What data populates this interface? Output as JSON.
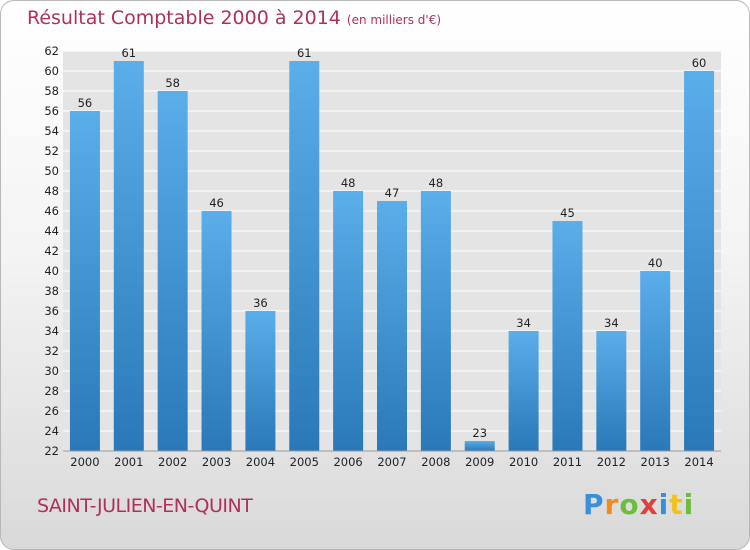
{
  "header": {
    "title": "Résultat Comptable 2000 à 2014",
    "unit": "(en milliers d'€)"
  },
  "footer": {
    "city": "SAINT-JULIEN-EN-QUINT",
    "logo": "Proxiti"
  },
  "colors": {
    "title": "#b0305a",
    "bar_top": "#5aaeea",
    "bar_bottom": "#2a78b8",
    "grid": "#ffffff",
    "plot_bg": "#e4e4e4",
    "axis_text": "#222222"
  },
  "chart_data": {
    "type": "bar",
    "title": "Résultat Comptable 2000 à 2014",
    "xlabel": "",
    "ylabel": "",
    "ylim": [
      22,
      62
    ],
    "ytick_step": 2,
    "grid": true,
    "categories": [
      "2000",
      "2001",
      "2002",
      "2003",
      "2004",
      "2005",
      "2006",
      "2007",
      "2008",
      "2009",
      "2010",
      "2011",
      "2012",
      "2013",
      "2014"
    ],
    "values": [
      56,
      61,
      58,
      46,
      36,
      61,
      48,
      47,
      48,
      23,
      34,
      45,
      34,
      40,
      60
    ],
    "data_labels": [
      "56",
      "61",
      "58",
      "46",
      "36",
      "61",
      "48",
      "47",
      "48",
      "23",
      "34",
      "45",
      "34",
      "40",
      "60"
    ]
  }
}
